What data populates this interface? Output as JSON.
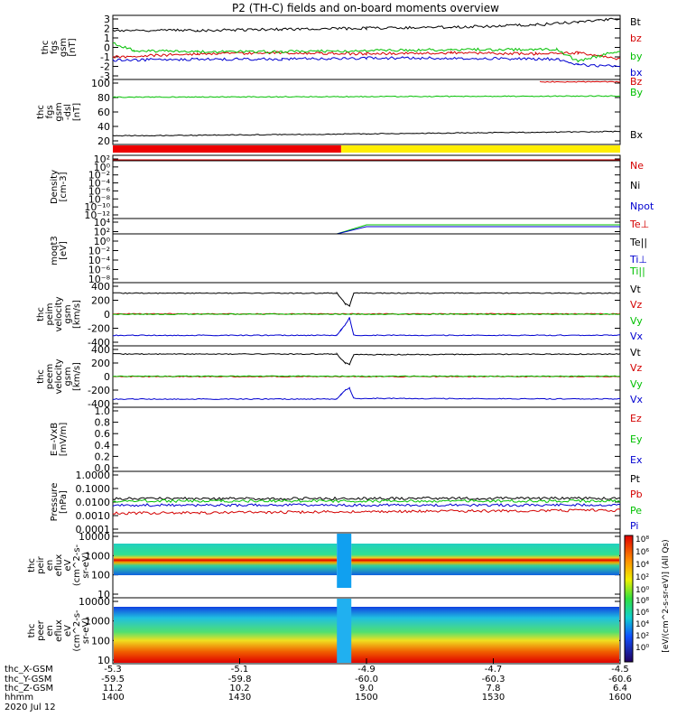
{
  "title": "P2 (TH-C) fields and on-board moments overview",
  "date_label": "2020 Jul 12",
  "colors": {
    "black": "#000000",
    "red": "#d40000",
    "green": "#00c000",
    "blue": "#0000d0",
    "yellow": "#ffee00",
    "bar_red": "#ee0000"
  },
  "chart_data": {
    "type": "line",
    "x_range_hhmm": [
      "1400",
      "1600"
    ],
    "x_ticks": {
      "thc_X_GSM": [
        "-5.3",
        "-5.1",
        "-4.9",
        "-4.7",
        "-4.5"
      ],
      "thc_Y_GSM": [
        "-59.5",
        "-59.8",
        "-60.0",
        "-60.3",
        "-60.6"
      ],
      "thc_Z_GSM": [
        "11.2",
        "10.2",
        "9.0",
        "7.8",
        "6.4"
      ],
      "hhmm": [
        "1400",
        "1430",
        "1500",
        "1530",
        "1600"
      ]
    },
    "x_tick_row_labels": [
      "thc_X-GSM",
      "thc_Y-GSM",
      "thc_Z-GSM",
      "hhmm"
    ],
    "panels": [
      {
        "id": "fgs",
        "ylabel": [
          "thc",
          "fgs",
          "gsm",
          "[nT]"
        ],
        "ylim": [
          -3,
          3
        ],
        "y_ticks": [
          "3",
          "2",
          "1",
          "0",
          "-1",
          "-2",
          "-3"
        ],
        "legend": [
          "Bt",
          "bz",
          "by",
          "bx"
        ],
        "series": [
          {
            "name": "Bt",
            "color": "black",
            "x": [
              1400,
              1420,
              1440,
              1500,
              1520,
              1540,
              1550,
              1555,
              1600
            ],
            "values": [
              1.6,
              1.6,
              1.7,
              1.8,
              1.9,
              2.1,
              2.4,
              2.6,
              2.6
            ]
          },
          {
            "name": "bz",
            "color": "red",
            "x": [
              1400,
              1420,
              1440,
              1500,
              1520,
              1540,
              1550,
              1600
            ],
            "values": [
              -0.9,
              -0.6,
              -0.5,
              -0.6,
              -0.5,
              -0.6,
              -0.5,
              -1.1
            ]
          },
          {
            "name": "by",
            "color": "green",
            "x": [
              1400,
              1405,
              1420,
              1440,
              1500,
              1520,
              1545,
              1550,
              1600
            ],
            "values": [
              0.4,
              -0.3,
              -0.4,
              -0.4,
              -0.3,
              -0.2,
              -0.2,
              -1.3,
              -0.3
            ]
          },
          {
            "name": "bx",
            "color": "blue",
            "x": [
              1400,
              1420,
              1440,
              1500,
              1520,
              1545,
              1550,
              1600
            ],
            "values": [
              -1.2,
              -1.1,
              -1.1,
              -1.0,
              -1.0,
              -1.1,
              -1.6,
              -1.8
            ]
          }
        ]
      },
      {
        "id": "fgs_dsl",
        "ylabel": [
          "thc",
          "fgs",
          "gsm",
          "-dsl",
          "[nT]"
        ],
        "ylim": [
          0,
          110
        ],
        "y_ticks": [
          "100",
          "80",
          "60",
          "40",
          "20"
        ],
        "legend": [
          "Bz",
          "By",
          "Bx"
        ],
        "series": [
          {
            "name": "Bz",
            "color": "red",
            "x": [
              1541,
              1600
            ],
            "values": [
              106,
              106
            ]
          },
          {
            "name": "By",
            "color": "green",
            "x": [
              1400,
              1500,
              1600
            ],
            "values": [
              80,
              81,
              82
            ]
          },
          {
            "name": "Bx",
            "color": "black",
            "x": [
              1400,
              1410,
              1500,
              1600
            ],
            "values": [
              15,
              15,
              18,
              22
            ]
          }
        ]
      },
      {
        "id": "density",
        "ylabel": [
          "Density",
          "[cm-3]"
        ],
        "y_ticks": [
          "10²",
          "10⁰",
          "10⁻²",
          "10⁻⁴",
          "10⁻⁶",
          "10⁻⁸",
          "10⁻¹⁰",
          "10⁻¹²"
        ],
        "legend": [
          "Ne",
          "Ni",
          "Npot"
        ]
      },
      {
        "id": "temperature",
        "ylabel": [
          "moqt3",
          "[eV]"
        ],
        "y_ticks": [
          "10⁴",
          "10²",
          "10⁰",
          "10⁻²",
          "10⁻⁴",
          "10⁻⁶",
          "10⁻⁸"
        ],
        "legend": [
          "Te⊥",
          "Te||",
          "Ti⊥",
          "Ti||"
        ]
      },
      {
        "id": "peim",
        "ylabel": [
          "thc",
          "peim",
          "velocity",
          "gsm",
          "[km/s]"
        ],
        "ylim": [
          -450,
          450
        ],
        "y_ticks": [
          "400",
          "200",
          "0",
          "-200",
          "-400"
        ],
        "legend": [
          "Vt",
          "Vz",
          "Vy",
          "Vx"
        ],
        "series": [
          {
            "name": "Vt",
            "color": "black",
            "x": [
              1400,
              1453,
              1454,
              1455,
              1456,
              1457,
              1600
            ],
            "values": [
              300,
              300,
              230,
              150,
              120,
              300,
              300
            ]
          },
          {
            "name": "Vz",
            "color": "red",
            "x": [
              1400,
              1600
            ],
            "values": [
              5,
              5
            ]
          },
          {
            "name": "Vy",
            "color": "green",
            "x": [
              1400,
              1600
            ],
            "values": [
              0,
              0
            ]
          },
          {
            "name": "Vx",
            "color": "blue",
            "x": [
              1400,
              1453,
              1454,
              1455,
              1456,
              1457,
              1600
            ],
            "values": [
              -300,
              -300,
              -220,
              -150,
              -50,
              -300,
              -300
            ]
          }
        ]
      },
      {
        "id": "peem",
        "ylabel": [
          "thc",
          "peem",
          "velocity",
          "gsm",
          "[km/s]"
        ],
        "ylim": [
          -450,
          450
        ],
        "y_ticks": [
          "400",
          "200",
          "0",
          "-200",
          "-400"
        ],
        "legend": [
          "Vt",
          "Vz",
          "Vy",
          "Vx"
        ],
        "series": [
          {
            "name": "Vt",
            "color": "black",
            "x": [
              1400,
              1453,
              1454,
              1455,
              1456,
              1457,
              1600
            ],
            "values": [
              330,
              330,
              260,
              200,
              180,
              320,
              330
            ]
          },
          {
            "name": "Vz",
            "color": "red",
            "x": [
              1400,
              1600
            ],
            "values": [
              0,
              0
            ]
          },
          {
            "name": "Vy",
            "color": "green",
            "x": [
              1400,
              1600
            ],
            "values": [
              5,
              5
            ]
          },
          {
            "name": "Vx",
            "color": "blue",
            "x": [
              1400,
              1453,
              1454,
              1455,
              1456,
              1457,
              1600
            ],
            "values": [
              -330,
              -330,
              -260,
              -200,
              -170,
              -320,
              -330
            ]
          }
        ]
      },
      {
        "id": "efield",
        "ylabel": [
          "E=-VxB",
          "[mV/m]"
        ],
        "ylim": [
          0,
          1
        ],
        "y_ticks": [
          "1.0",
          "0.8",
          "0.6",
          "0.4",
          "0.2",
          "0.0"
        ],
        "legend": [
          "Ez",
          "Ey",
          "Ex"
        ]
      },
      {
        "id": "pressure",
        "ylabel": [
          "Pressure",
          "[nPa]"
        ],
        "y_ticks": [
          "1.0000",
          "0.1000",
          "0.0100",
          "0.0010",
          "0.0001"
        ],
        "legend": [
          "Pt",
          "Pb",
          "Pe",
          "Pi"
        ],
        "series": [
          {
            "name": "Pt",
            "color": "black",
            "x": [
              1400,
              1600
            ],
            "values": [
              0.018,
              0.019
            ]
          },
          {
            "name": "Pb",
            "color": "red",
            "x": [
              1400,
              1600
            ],
            "values": [
              0.0015,
              0.0025
            ]
          },
          {
            "name": "Pe",
            "color": "green",
            "x": [
              1400,
              1600
            ],
            "values": [
              0.012,
              0.012
            ]
          },
          {
            "name": "Pi",
            "color": "blue",
            "x": [
              1400,
              1600
            ],
            "values": [
              0.006,
              0.006
            ]
          }
        ]
      },
      {
        "id": "peir",
        "type": "heatmap",
        "ylabel": [
          "thc",
          "peir",
          "en",
          "eflux",
          "eV",
          "(cm^2-s-",
          "sr-eV)"
        ],
        "y_ticks": [
          "10000",
          "1000",
          "100",
          "10"
        ]
      },
      {
        "id": "peer",
        "type": "heatmap",
        "ylabel": [
          "thc",
          "peer",
          "en",
          "eflux",
          "eV",
          "(cm^2-s-",
          "sr-eV)"
        ],
        "y_ticks": [
          "10000",
          "1000",
          "100",
          "10"
        ]
      }
    ],
    "colorbar": {
      "ticks": [
        "10⁸",
        "10⁶",
        "10⁴",
        "10²",
        "10⁰"
      ],
      "label": "[eV/(cm^2-s-sr-eV)] (All Qs)"
    }
  }
}
